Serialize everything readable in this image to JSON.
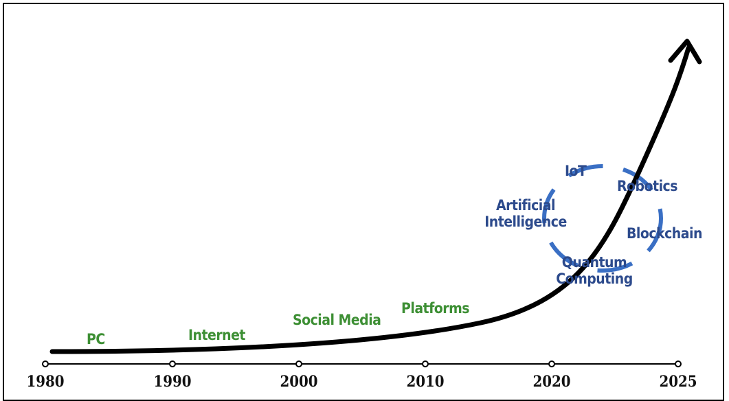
{
  "timeline": {
    "years": [
      "1980",
      "1990",
      "2000",
      "2010",
      "2020",
      "2025"
    ]
  },
  "eras": {
    "pc": "PC",
    "internet": "Internet",
    "social_media": "Social Media",
    "platforms": "Platforms"
  },
  "future_tech": {
    "iot": "IoT",
    "robotics": "Robotics",
    "ai_line1": "Artificial",
    "ai_line2": "Intelligence",
    "blockchain": "Blockchain",
    "quantum_line1": "Quantum",
    "quantum_line2": "Computing"
  },
  "colors": {
    "era_text": "#3d8f34",
    "future_text": "#2c4a8c",
    "cycle_ring": "#3a6fc4",
    "growth_curve": "#000000"
  }
}
